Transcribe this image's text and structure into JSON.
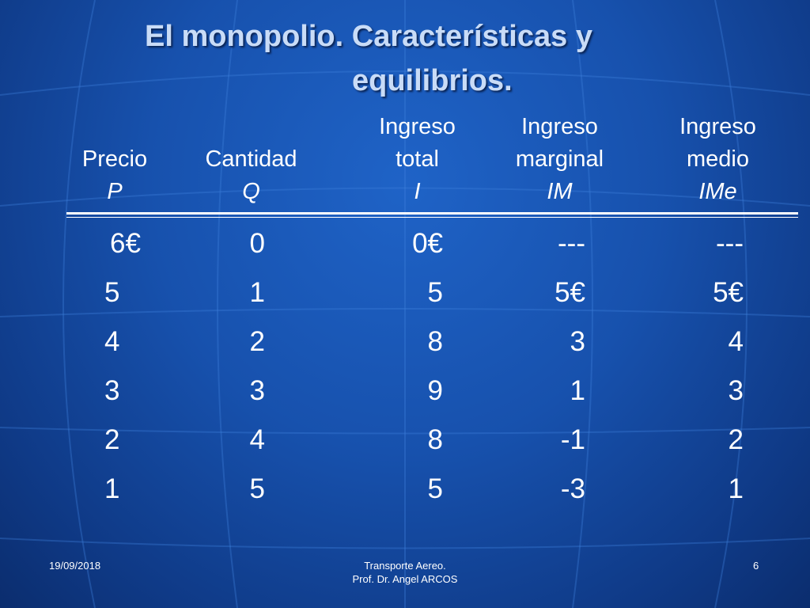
{
  "title": {
    "line1": "El monopolio. Características y",
    "line2": "equilibrios."
  },
  "table": {
    "headers": [
      {
        "l1": "",
        "l2": "Precio",
        "sym": "P"
      },
      {
        "l1": "",
        "l2": "Cantidad",
        "sym": "Q"
      },
      {
        "l1": "Ingreso",
        "l2": "total",
        "sym": "I"
      },
      {
        "l1": "Ingreso",
        "l2": "marginal",
        "sym": "IM"
      },
      {
        "l1": "Ingreso",
        "l2": "medio",
        "sym": "IMe"
      }
    ],
    "rows": [
      [
        "6€",
        "0",
        "0€",
        "---",
        "---"
      ],
      [
        "5",
        "1",
        "5",
        "5€",
        "5€"
      ],
      [
        "4",
        "2",
        "8",
        "3",
        "4"
      ],
      [
        "3",
        "3",
        "9",
        "1",
        "3"
      ],
      [
        "2",
        "4",
        "8",
        "-1",
        "2"
      ],
      [
        "1",
        "5",
        "5",
        "-3",
        "1"
      ]
    ]
  },
  "footer": {
    "date": "19/09/2018",
    "center_line1": "Transporte Aereo.",
    "center_line2": "Prof. Dr. Angel ARCOS",
    "page": "6"
  }
}
